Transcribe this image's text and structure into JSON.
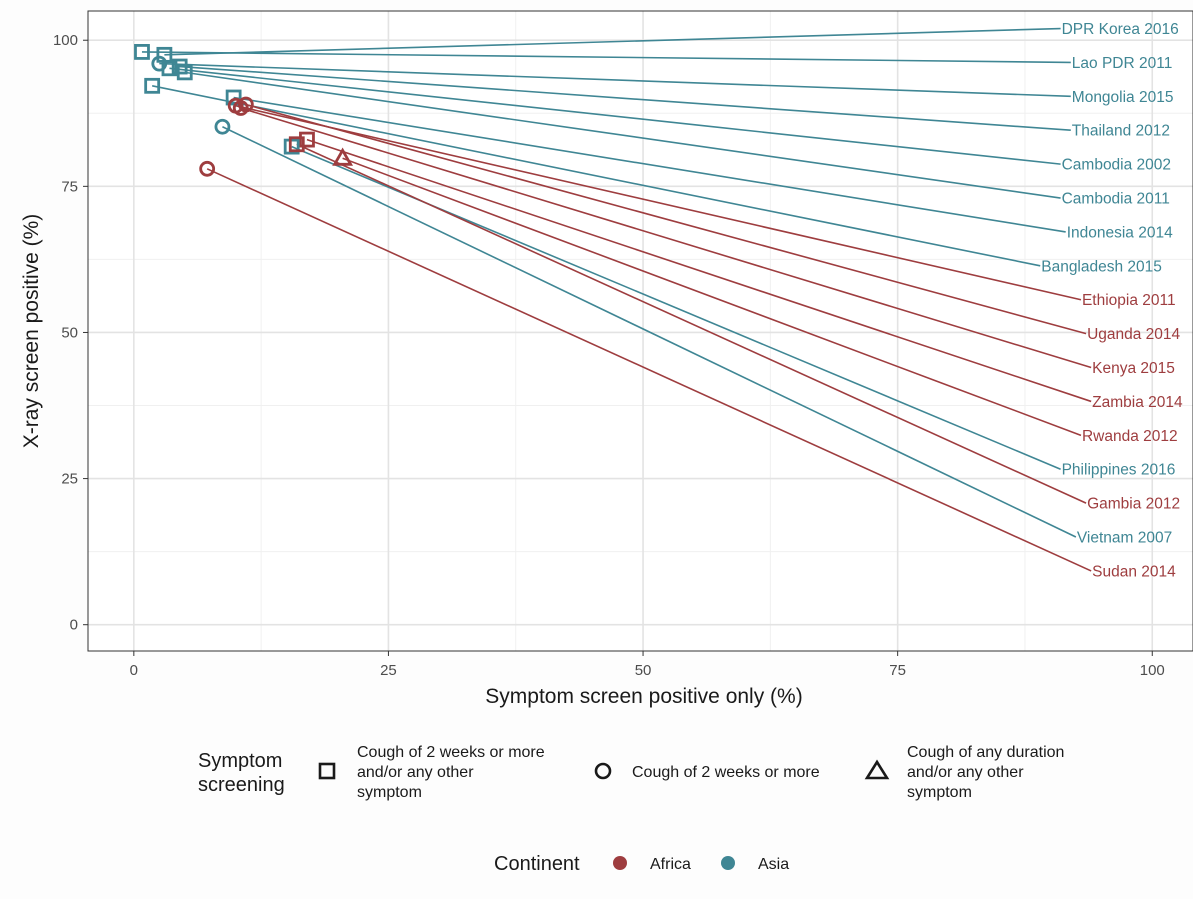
{
  "chart_data": {
    "type": "scatter",
    "xlabel": "Symptom screen positive only (%)",
    "ylabel": "X-ray screen positive (%)",
    "xlim": [
      -4.5,
      104
    ],
    "ylim": [
      -4.5,
      105
    ],
    "x_ticks": [
      0,
      25,
      50,
      75,
      100
    ],
    "y_ticks": [
      0,
      25,
      50,
      75,
      100
    ],
    "grid": true,
    "colors": {
      "Africa": "#9e3d3f",
      "Asia": "#3f8694"
    },
    "series": [
      {
        "label": "DPR Korea 2016",
        "continent": "Asia",
        "screening": "square",
        "x": 3.0,
        "y": 97.5,
        "label_x": 91,
        "label_y": 102.0
      },
      {
        "label": "Lao PDR 2011",
        "continent": "Asia",
        "screening": "square",
        "x": 0.8,
        "y": 98.0,
        "label_x": 92,
        "label_y": 96.2
      },
      {
        "label": "Mongolia 2015",
        "continent": "Asia",
        "screening": "circle",
        "x": 2.5,
        "y": 96.0,
        "label_x": 92,
        "label_y": 90.4
      },
      {
        "label": "Thailand 2012",
        "continent": "Asia",
        "screening": "square",
        "x": 4.5,
        "y": 95.5,
        "label_x": 92,
        "label_y": 84.6
      },
      {
        "label": "Cambodia 2002",
        "continent": "Asia",
        "screening": "square",
        "x": 3.5,
        "y": 95.2,
        "label_x": 91,
        "label_y": 78.8
      },
      {
        "label": "Cambodia 2011",
        "continent": "Asia",
        "screening": "square",
        "x": 5.0,
        "y": 94.5,
        "label_x": 91,
        "label_y": 73.0
      },
      {
        "label": "Indonesia 2014",
        "continent": "Asia",
        "screening": "square",
        "x": 9.8,
        "y": 90.2,
        "label_x": 91.5,
        "label_y": 67.2
      },
      {
        "label": "Bangladesh  2015",
        "continent": "Asia",
        "screening": "square",
        "x": 1.8,
        "y": 92.2,
        "label_x": 89,
        "label_y": 61.4
      },
      {
        "label": "Ethiopia 2011",
        "continent": "Africa",
        "screening": "circle",
        "x": 10.0,
        "y": 88.8,
        "label_x": 93,
        "label_y": 55.6
      },
      {
        "label": "Uganda 2014",
        "continent": "Africa",
        "screening": "circle",
        "x": 11.0,
        "y": 89.0,
        "label_x": 93.5,
        "label_y": 49.8
      },
      {
        "label": "Kenya 2015",
        "continent": "Africa",
        "screening": "circle",
        "x": 10.5,
        "y": 88.4,
        "label_x": 94,
        "label_y": 44.0
      },
      {
        "label": "Zambia 2014",
        "continent": "Africa",
        "screening": "square",
        "x": 17.0,
        "y": 83.0,
        "label_x": 94,
        "label_y": 38.2
      },
      {
        "label": "Rwanda 2012",
        "continent": "Africa",
        "screening": "triangle",
        "x": 20.5,
        "y": 79.8,
        "label_x": 93,
        "label_y": 32.4
      },
      {
        "label": "Philippines 2016",
        "continent": "Asia",
        "screening": "square",
        "x": 15.5,
        "y": 81.8,
        "label_x": 91,
        "label_y": 26.6
      },
      {
        "label": "Gambia 2012",
        "continent": "Africa",
        "screening": "square",
        "x": 16.0,
        "y": 82.2,
        "label_x": 93.5,
        "label_y": 20.8
      },
      {
        "label": "Vietnam 2007",
        "continent": "Asia",
        "screening": "circle",
        "x": 8.7,
        "y": 85.2,
        "label_x": 92.5,
        "label_y": 15.0
      },
      {
        "label": "Sudan 2014",
        "continent": "Africa",
        "screening": "circle",
        "x": 7.2,
        "y": 78.0,
        "label_x": 94,
        "label_y": 9.2
      }
    ],
    "legend": {
      "screening_title_line1": "Symptom",
      "screening_title_line2": "screening",
      "square_line1": "Cough of 2 weeks or more",
      "square_line2": "and/or any other",
      "square_line3": "symptom",
      "circle_label": "Cough of 2 weeks or more",
      "triangle_line1": "Cough of any duration",
      "triangle_line2": "and/or any other",
      "triangle_line3": "symptom",
      "continent_title": "Continent",
      "africa_label": "Africa",
      "asia_label": "Asia"
    }
  }
}
